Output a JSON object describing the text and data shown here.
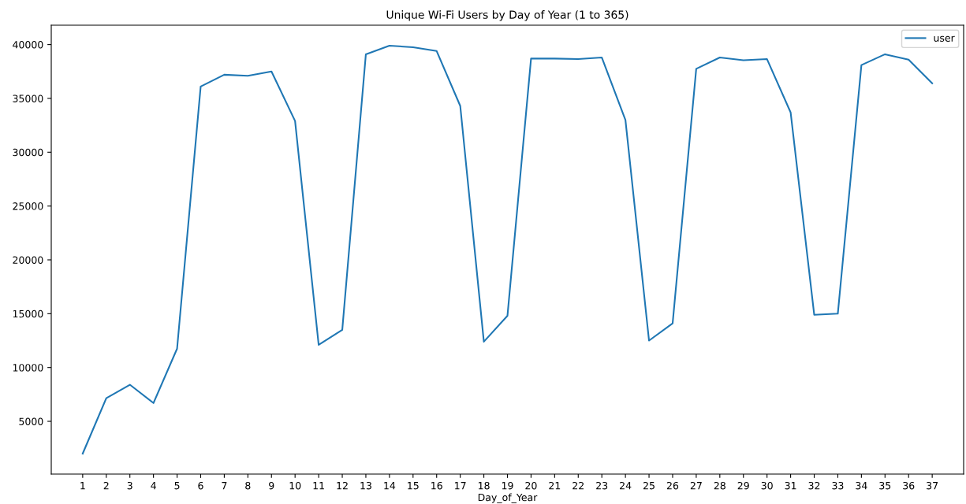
{
  "chart_data": {
    "type": "line",
    "title": "Unique Wi-Fi Users by Day of Year (1 to 365)",
    "xlabel": "Day_of_Year",
    "categories": [
      "1",
      "2",
      "3",
      "4",
      "5",
      "6",
      "7",
      "8",
      "9",
      "10",
      "11",
      "12",
      "13",
      "14",
      "15",
      "16",
      "17",
      "18",
      "19",
      "20",
      "21",
      "22",
      "23",
      "24",
      "25",
      "26",
      "27",
      "28",
      "29",
      "30",
      "31",
      "32",
      "33",
      "34",
      "35",
      "36",
      "37"
    ],
    "series": [
      {
        "name": "user",
        "color": "#1f77b4",
        "values": [
          2000,
          7150,
          8400,
          6700,
          11750,
          36100,
          37200,
          37100,
          37500,
          32900,
          12100,
          13500,
          39100,
          39900,
          39750,
          39400,
          34300,
          12400,
          14800,
          38700,
          38700,
          38650,
          38800,
          33000,
          12500,
          14100,
          37750,
          38800,
          38550,
          38650,
          33700,
          14900,
          15000,
          38100,
          39100,
          38600,
          36400
        ]
      }
    ],
    "ylim": [
      100,
      41800
    ],
    "yticks": [
      5000,
      10000,
      15000,
      20000,
      25000,
      30000,
      35000,
      40000
    ],
    "legend": "top right",
    "grid": false
  }
}
